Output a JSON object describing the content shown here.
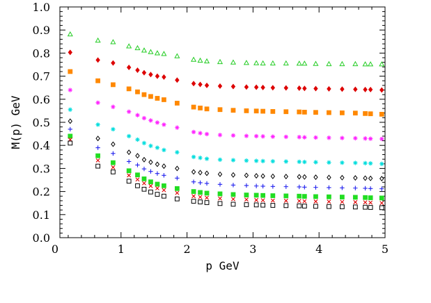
{
  "chart_data": {
    "type": "scatter",
    "title": "",
    "xlabel": "p  GeV",
    "ylabel": "M(p)  GeV",
    "xlim": [
      0,
      5
    ],
    "ylim": [
      0,
      1.0
    ],
    "x_ticks": [
      "0",
      "1",
      "2",
      "3",
      "4",
      "5"
    ],
    "y_ticks": [
      "0.0",
      "0.1",
      "0.2",
      "0.3",
      "0.4",
      "0.5",
      "0.6",
      "0.7",
      "0.8",
      "0.9",
      "1.0"
    ],
    "grid": false,
    "legend": "none",
    "series": [
      {
        "marker": "triangle",
        "color": "#22cc22",
        "fill": "none",
        "points": [
          [
            0.23,
            0.882
          ],
          [
            0.65,
            0.855
          ],
          [
            0.88,
            0.848
          ],
          [
            1.12,
            0.83
          ],
          [
            1.25,
            0.822
          ],
          [
            1.35,
            0.812
          ],
          [
            1.45,
            0.805
          ],
          [
            1.55,
            0.8
          ],
          [
            1.65,
            0.797
          ],
          [
            1.85,
            0.787
          ],
          [
            2.1,
            0.772
          ],
          [
            2.2,
            0.768
          ],
          [
            2.3,
            0.765
          ],
          [
            2.5,
            0.762
          ],
          [
            2.7,
            0.76
          ],
          [
            2.9,
            0.758
          ],
          [
            3.05,
            0.757
          ],
          [
            3.15,
            0.756
          ],
          [
            3.3,
            0.756
          ],
          [
            3.5,
            0.756
          ],
          [
            3.7,
            0.755
          ],
          [
            3.78,
            0.755
          ],
          [
            3.95,
            0.754
          ],
          [
            4.15,
            0.753
          ],
          [
            4.35,
            0.753
          ],
          [
            4.55,
            0.753
          ],
          [
            4.7,
            0.752
          ],
          [
            4.78,
            0.752
          ],
          [
            4.95,
            0.752
          ]
        ]
      },
      {
        "marker": "diamond",
        "color": "#dd0000",
        "fill": "#dd0000",
        "points": [
          [
            0.23,
            0.803
          ],
          [
            0.65,
            0.77
          ],
          [
            0.88,
            0.757
          ],
          [
            1.12,
            0.738
          ],
          [
            1.25,
            0.726
          ],
          [
            1.35,
            0.715
          ],
          [
            1.45,
            0.707
          ],
          [
            1.55,
            0.7
          ],
          [
            1.65,
            0.696
          ],
          [
            1.85,
            0.683
          ],
          [
            2.1,
            0.668
          ],
          [
            2.2,
            0.664
          ],
          [
            2.3,
            0.66
          ],
          [
            2.5,
            0.657
          ],
          [
            2.7,
            0.655
          ],
          [
            2.9,
            0.653
          ],
          [
            3.05,
            0.652
          ],
          [
            3.15,
            0.651
          ],
          [
            3.3,
            0.65
          ],
          [
            3.5,
            0.649
          ],
          [
            3.7,
            0.648
          ],
          [
            3.78,
            0.647
          ],
          [
            3.95,
            0.646
          ],
          [
            4.15,
            0.645
          ],
          [
            4.35,
            0.644
          ],
          [
            4.55,
            0.643
          ],
          [
            4.7,
            0.642
          ],
          [
            4.78,
            0.642
          ],
          [
            4.95,
            0.64
          ]
        ]
      },
      {
        "marker": "square",
        "color": "#ff8800",
        "fill": "#ff8800",
        "points": [
          [
            0.23,
            0.72
          ],
          [
            0.65,
            0.68
          ],
          [
            0.88,
            0.663
          ],
          [
            1.12,
            0.645
          ],
          [
            1.25,
            0.632
          ],
          [
            1.35,
            0.62
          ],
          [
            1.45,
            0.612
          ],
          [
            1.55,
            0.604
          ],
          [
            1.65,
            0.598
          ],
          [
            1.85,
            0.583
          ],
          [
            2.1,
            0.566
          ],
          [
            2.2,
            0.562
          ],
          [
            2.3,
            0.558
          ],
          [
            2.5,
            0.555
          ],
          [
            2.7,
            0.552
          ],
          [
            2.9,
            0.55
          ],
          [
            3.05,
            0.549
          ],
          [
            3.15,
            0.548
          ],
          [
            3.3,
            0.547
          ],
          [
            3.5,
            0.546
          ],
          [
            3.7,
            0.545
          ],
          [
            3.78,
            0.544
          ],
          [
            3.95,
            0.543
          ],
          [
            4.15,
            0.542
          ],
          [
            4.35,
            0.541
          ],
          [
            4.55,
            0.54
          ],
          [
            4.7,
            0.538
          ],
          [
            4.78,
            0.537
          ],
          [
            4.95,
            0.535
          ]
        ]
      },
      {
        "marker": "star",
        "color": "#ff22ff",
        "fill": "#ff22ff",
        "points": [
          [
            0.23,
            0.64
          ],
          [
            0.65,
            0.585
          ],
          [
            0.88,
            0.567
          ],
          [
            1.12,
            0.546
          ],
          [
            1.25,
            0.531
          ],
          [
            1.35,
            0.518
          ],
          [
            1.45,
            0.508
          ],
          [
            1.55,
            0.499
          ],
          [
            1.65,
            0.49
          ],
          [
            1.85,
            0.477
          ],
          [
            2.1,
            0.458
          ],
          [
            2.2,
            0.453
          ],
          [
            2.3,
            0.449
          ],
          [
            2.5,
            0.445
          ],
          [
            2.7,
            0.443
          ],
          [
            2.9,
            0.441
          ],
          [
            3.05,
            0.44
          ],
          [
            3.15,
            0.439
          ],
          [
            3.3,
            0.438
          ],
          [
            3.5,
            0.437
          ],
          [
            3.7,
            0.436
          ],
          [
            3.78,
            0.435
          ],
          [
            3.95,
            0.434
          ],
          [
            4.15,
            0.433
          ],
          [
            4.35,
            0.432
          ],
          [
            4.55,
            0.431
          ],
          [
            4.7,
            0.43
          ],
          [
            4.78,
            0.429
          ],
          [
            4.95,
            0.428
          ]
        ]
      },
      {
        "marker": "star",
        "color": "#00dddd",
        "fill": "#00dddd",
        "points": [
          [
            0.23,
            0.555
          ],
          [
            0.65,
            0.49
          ],
          [
            0.88,
            0.47
          ],
          [
            1.12,
            0.44
          ],
          [
            1.25,
            0.425
          ],
          [
            1.35,
            0.41
          ],
          [
            1.45,
            0.398
          ],
          [
            1.55,
            0.39
          ],
          [
            1.65,
            0.38
          ],
          [
            1.85,
            0.37
          ],
          [
            2.1,
            0.35
          ],
          [
            2.2,
            0.346
          ],
          [
            2.3,
            0.342
          ],
          [
            2.5,
            0.338
          ],
          [
            2.7,
            0.336
          ],
          [
            2.9,
            0.334
          ],
          [
            3.05,
            0.333
          ],
          [
            3.15,
            0.332
          ],
          [
            3.3,
            0.331
          ],
          [
            3.5,
            0.33
          ],
          [
            3.7,
            0.329
          ],
          [
            3.78,
            0.328
          ],
          [
            3.95,
            0.327
          ],
          [
            4.15,
            0.326
          ],
          [
            4.35,
            0.325
          ],
          [
            4.55,
            0.324
          ],
          [
            4.7,
            0.323
          ],
          [
            4.78,
            0.322
          ],
          [
            4.95,
            0.32
          ]
        ]
      },
      {
        "marker": "diamond",
        "color": "#000000",
        "fill": "none",
        "points": [
          [
            0.23,
            0.505
          ],
          [
            0.65,
            0.43
          ],
          [
            0.88,
            0.405
          ],
          [
            1.12,
            0.37
          ],
          [
            1.25,
            0.355
          ],
          [
            1.35,
            0.338
          ],
          [
            1.45,
            0.327
          ],
          [
            1.55,
            0.318
          ],
          [
            1.65,
            0.31
          ],
          [
            1.85,
            0.3
          ],
          [
            2.1,
            0.285
          ],
          [
            2.2,
            0.282
          ],
          [
            2.3,
            0.279
          ],
          [
            2.5,
            0.275
          ],
          [
            2.7,
            0.272
          ],
          [
            2.9,
            0.27
          ],
          [
            3.05,
            0.268
          ],
          [
            3.15,
            0.267
          ],
          [
            3.3,
            0.266
          ],
          [
            3.5,
            0.265
          ],
          [
            3.7,
            0.264
          ],
          [
            3.78,
            0.263
          ],
          [
            3.95,
            0.262
          ],
          [
            4.15,
            0.261
          ],
          [
            4.35,
            0.26
          ],
          [
            4.55,
            0.259
          ],
          [
            4.7,
            0.258
          ],
          [
            4.78,
            0.257
          ],
          [
            4.95,
            0.256
          ]
        ]
      },
      {
        "marker": "plus",
        "color": "#2222ee",
        "fill": "none",
        "points": [
          [
            0.23,
            0.47
          ],
          [
            0.65,
            0.39
          ],
          [
            0.88,
            0.365
          ],
          [
            1.12,
            0.33
          ],
          [
            1.25,
            0.315
          ],
          [
            1.35,
            0.298
          ],
          [
            1.45,
            0.287
          ],
          [
            1.55,
            0.278
          ],
          [
            1.65,
            0.27
          ],
          [
            1.85,
            0.258
          ],
          [
            2.1,
            0.242
          ],
          [
            2.2,
            0.238
          ],
          [
            2.3,
            0.235
          ],
          [
            2.5,
            0.231
          ],
          [
            2.7,
            0.228
          ],
          [
            2.9,
            0.226
          ],
          [
            3.05,
            0.224
          ],
          [
            3.15,
            0.223
          ],
          [
            3.3,
            0.222
          ],
          [
            3.5,
            0.221
          ],
          [
            3.7,
            0.22
          ],
          [
            3.78,
            0.219
          ],
          [
            3.95,
            0.218
          ],
          [
            4.15,
            0.217
          ],
          [
            4.35,
            0.216
          ],
          [
            4.55,
            0.215
          ],
          [
            4.7,
            0.214
          ],
          [
            4.78,
            0.213
          ],
          [
            4.95,
            0.212
          ]
        ]
      },
      {
        "marker": "square",
        "color": "#22dd22",
        "fill": "#22dd22",
        "points": [
          [
            0.23,
            0.44
          ],
          [
            0.65,
            0.355
          ],
          [
            0.88,
            0.325
          ],
          [
            1.12,
            0.29
          ],
          [
            1.25,
            0.272
          ],
          [
            1.35,
            0.255
          ],
          [
            1.45,
            0.242
          ],
          [
            1.55,
            0.232
          ],
          [
            1.65,
            0.225
          ],
          [
            1.85,
            0.213
          ],
          [
            2.1,
            0.2
          ],
          [
            2.2,
            0.196
          ],
          [
            2.3,
            0.193
          ],
          [
            2.5,
            0.19
          ],
          [
            2.7,
            0.187
          ],
          [
            2.9,
            0.185
          ],
          [
            3.05,
            0.184
          ],
          [
            3.15,
            0.183
          ],
          [
            3.3,
            0.182
          ],
          [
            3.5,
            0.181
          ],
          [
            3.7,
            0.18
          ],
          [
            3.78,
            0.179
          ],
          [
            3.95,
            0.178
          ],
          [
            4.15,
            0.177
          ],
          [
            4.35,
            0.176
          ],
          [
            4.55,
            0.175
          ],
          [
            4.7,
            0.174
          ],
          [
            4.78,
            0.173
          ],
          [
            4.95,
            0.172
          ]
        ]
      },
      {
        "marker": "cross",
        "color": "#dd0000",
        "fill": "none",
        "points": [
          [
            0.23,
            0.425
          ],
          [
            0.65,
            0.335
          ],
          [
            0.88,
            0.305
          ],
          [
            1.12,
            0.27
          ],
          [
            1.25,
            0.252
          ],
          [
            1.35,
            0.236
          ],
          [
            1.45,
            0.224
          ],
          [
            1.55,
            0.214
          ],
          [
            1.65,
            0.206
          ],
          [
            1.85,
            0.194
          ],
          [
            2.1,
            0.18
          ],
          [
            2.2,
            0.176
          ],
          [
            2.3,
            0.173
          ],
          [
            2.5,
            0.17
          ],
          [
            2.7,
            0.167
          ],
          [
            2.9,
            0.165
          ],
          [
            3.05,
            0.163
          ],
          [
            3.15,
            0.162
          ],
          [
            3.3,
            0.161
          ],
          [
            3.5,
            0.16
          ],
          [
            3.7,
            0.159
          ],
          [
            3.78,
            0.158
          ],
          [
            3.95,
            0.157
          ],
          [
            4.15,
            0.156
          ],
          [
            4.35,
            0.155
          ],
          [
            4.55,
            0.154
          ],
          [
            4.7,
            0.153
          ],
          [
            4.78,
            0.152
          ],
          [
            4.95,
            0.15
          ]
        ]
      },
      {
        "marker": "square",
        "color": "#000000",
        "fill": "none",
        "points": [
          [
            0.23,
            0.41
          ],
          [
            0.65,
            0.31
          ],
          [
            0.88,
            0.285
          ],
          [
            1.12,
            0.245
          ],
          [
            1.25,
            0.225
          ],
          [
            1.35,
            0.21
          ],
          [
            1.45,
            0.198
          ],
          [
            1.55,
            0.188
          ],
          [
            1.65,
            0.18
          ],
          [
            1.85,
            0.168
          ],
          [
            2.1,
            0.158
          ],
          [
            2.2,
            0.155
          ],
          [
            2.3,
            0.152
          ],
          [
            2.5,
            0.148
          ],
          [
            2.7,
            0.145
          ],
          [
            2.9,
            0.143
          ],
          [
            3.05,
            0.142
          ],
          [
            3.15,
            0.141
          ],
          [
            3.3,
            0.14
          ],
          [
            3.5,
            0.139
          ],
          [
            3.7,
            0.138
          ],
          [
            3.78,
            0.137
          ],
          [
            3.95,
            0.136
          ],
          [
            4.15,
            0.135
          ],
          [
            4.35,
            0.134
          ],
          [
            4.55,
            0.133
          ],
          [
            4.7,
            0.132
          ],
          [
            4.78,
            0.131
          ],
          [
            4.95,
            0.13
          ]
        ]
      }
    ]
  }
}
